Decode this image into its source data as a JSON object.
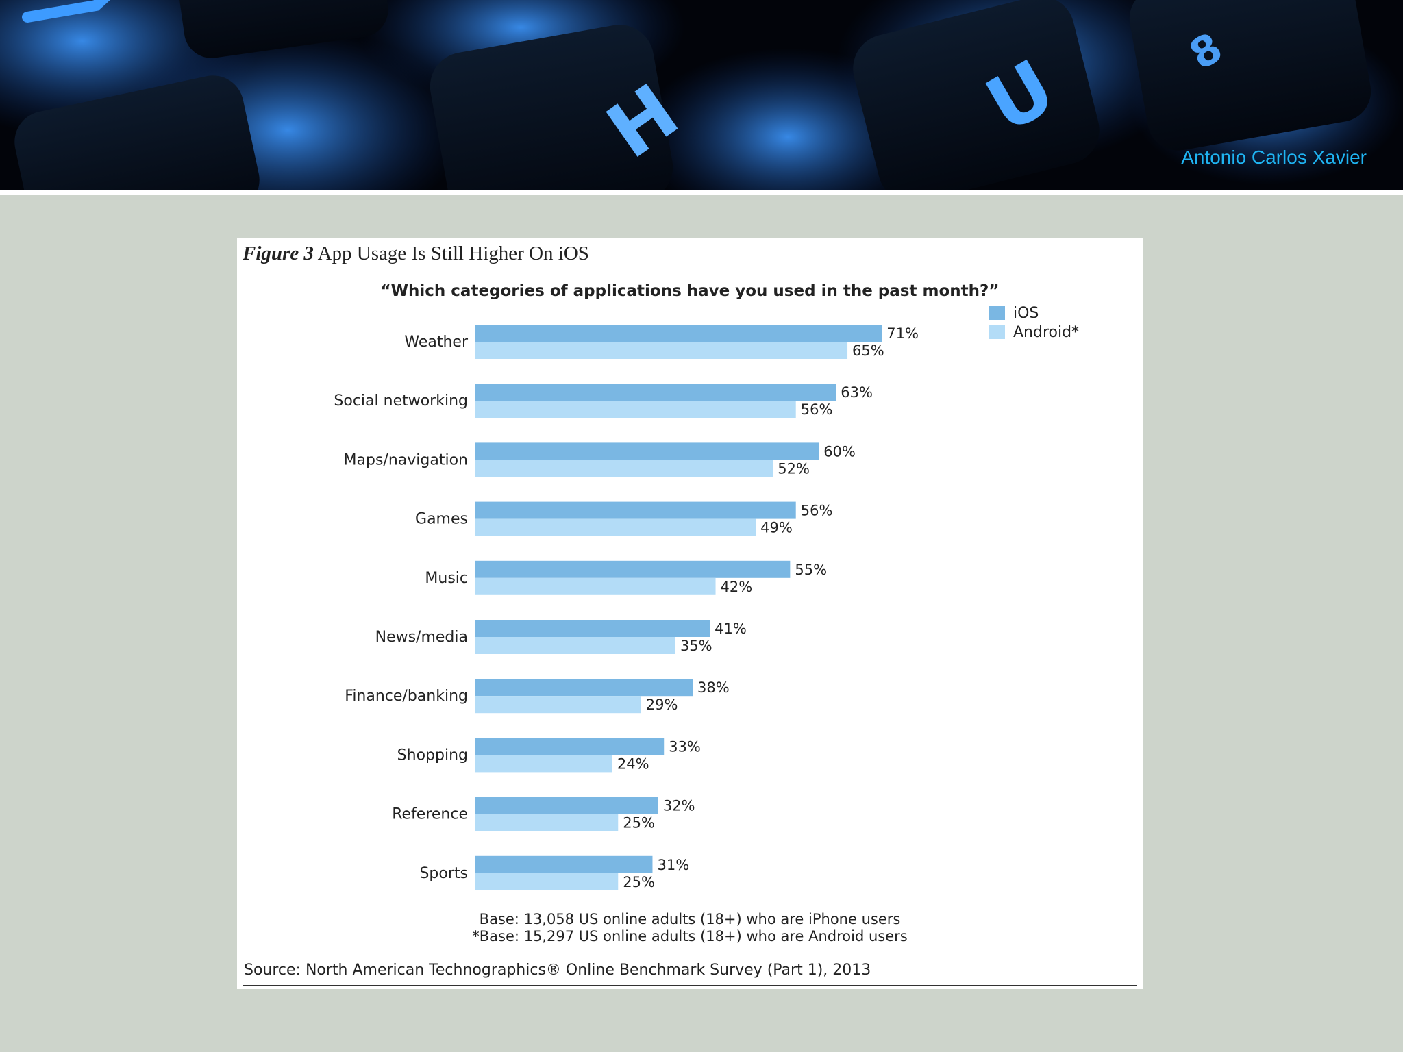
{
  "banner": {
    "author": "Antonio Carlos Xavier",
    "key_glyphs": [
      "H",
      "U",
      "8"
    ]
  },
  "figure": {
    "number_label": "Figure 3",
    "title": "App Usage Is Still Higher On iOS",
    "base_note": "Base: 13,058 US online adults (18+) who are iPhone users",
    "base_note_android": "*Base: 15,297 US online adults (18+) who are Android users",
    "source": "Source: North American Technographics® Online Benchmark Survey (Part 1), 2013"
  },
  "chart_data": {
    "type": "bar",
    "orientation": "horizontal",
    "subtitle": "“Which categories of applications have you used in the past month?”",
    "categories": [
      "Weather",
      "Social networking",
      "Maps/navigation",
      "Games",
      "Music",
      "News/media",
      "Finance/banking",
      "Shopping",
      "Reference",
      "Sports"
    ],
    "series": [
      {
        "name": "iOS",
        "values": [
          71,
          63,
          60,
          56,
          55,
          41,
          38,
          33,
          32,
          31
        ],
        "color": "#7ab7e3"
      },
      {
        "name": "Android*",
        "values": [
          65,
          56,
          52,
          49,
          42,
          35,
          29,
          24,
          25,
          25
        ],
        "color": "#b3dcf7"
      }
    ],
    "value_suffix": "%",
    "xlim": [
      0,
      100
    ],
    "grid": false,
    "legend_position": "top-right"
  }
}
